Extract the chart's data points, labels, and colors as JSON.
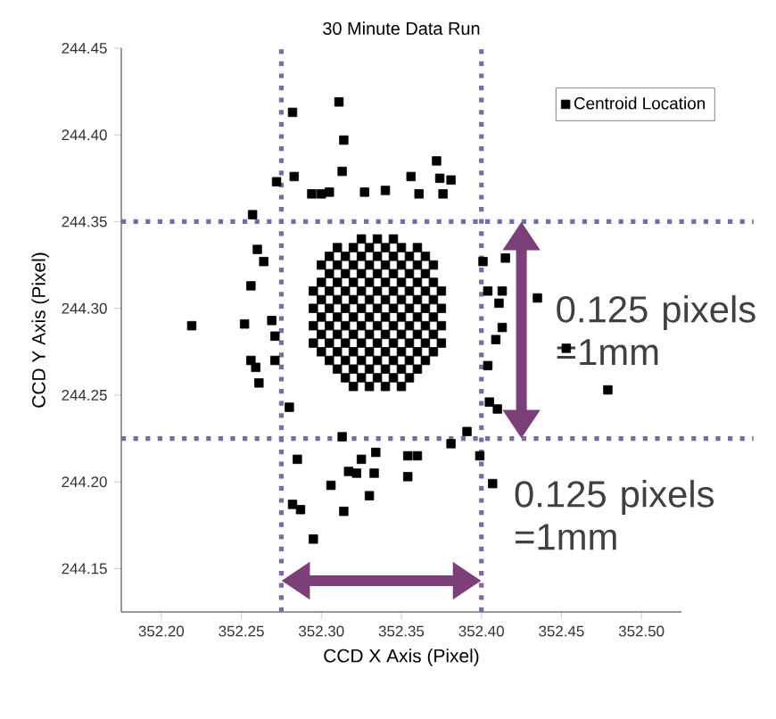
{
  "chart_data": {
    "type": "scatter",
    "title": "30 Minute Data Run",
    "xlabel": "CCD X Axis (Pixel)",
    "ylabel": "CCD Y Axis (Pixel)",
    "xlim": [
      352.175,
      352.525
    ],
    "ylim": [
      244.125,
      244.45
    ],
    "xticks": [
      {
        "value": 352.2,
        "label": "352.20"
      },
      352.25,
      {
        "value": 352.3,
        "label": "352.30"
      },
      352.35,
      {
        "value": 352.4,
        "label": "352.40"
      },
      352.45,
      {
        "value": 352.5,
        "label": "352.50"
      }
    ],
    "yticks": [
      244.15,
      {
        "value": 244.2,
        "label": "244.20"
      },
      244.25,
      {
        "value": 244.3,
        "label": "244.30"
      },
      244.35,
      {
        "value": 244.4,
        "label": "244.40"
      },
      244.45
    ],
    "marker": "square",
    "legend": "top right",
    "grid": false,
    "series": [
      {
        "name": "Centroid Location",
        "color": "#000000",
        "x": [
          352.219,
          352.252,
          352.257,
          352.256,
          352.256,
          352.259,
          352.261,
          352.26,
          352.264,
          352.269,
          352.271,
          352.271,
          352.272,
          352.282,
          352.283,
          352.311,
          352.314,
          352.313,
          352.294,
          352.3,
          352.305,
          352.327,
          352.34,
          352.356,
          352.372,
          352.374,
          352.381,
          352.376,
          352.361,
          352.28,
          352.285,
          352.282,
          352.287,
          352.295,
          352.306,
          352.314,
          352.317,
          352.322,
          352.325,
          352.33,
          352.333,
          352.334,
          352.354,
          352.36,
          352.354,
          352.313,
          352.381,
          352.391,
          352.399,
          352.407,
          352.404,
          352.405,
          352.41,
          352.409,
          352.413,
          352.411,
          352.413,
          352.415,
          352.435,
          352.453,
          352.479,
          352.404,
          352.401,
          352.32,
          352.33,
          352.34,
          352.35,
          352.315,
          352.325,
          352.335,
          352.345,
          352.355,
          352.31,
          352.32,
          352.33,
          352.34,
          352.35,
          352.36,
          352.305,
          352.315,
          352.325,
          352.335,
          352.345,
          352.355,
          352.365,
          352.3,
          352.31,
          352.32,
          352.33,
          352.34,
          352.35,
          352.36,
          352.37,
          352.295,
          352.305,
          352.315,
          352.325,
          352.335,
          352.345,
          352.355,
          352.365,
          352.375,
          352.3,
          352.31,
          352.32,
          352.33,
          352.34,
          352.35,
          352.36,
          352.37,
          352.295,
          352.305,
          352.315,
          352.325,
          352.335,
          352.345,
          352.355,
          352.365,
          352.375,
          352.3,
          352.31,
          352.32,
          352.33,
          352.34,
          352.35,
          352.36,
          352.37,
          352.295,
          352.305,
          352.315,
          352.325,
          352.335,
          352.345,
          352.355,
          352.365,
          352.375,
          352.3,
          352.31,
          352.32,
          352.33,
          352.34,
          352.35,
          352.36,
          352.37,
          352.295,
          352.305,
          352.315,
          352.325,
          352.335,
          352.345,
          352.355,
          352.365,
          352.375,
          352.3,
          352.31,
          352.32,
          352.33,
          352.34,
          352.35,
          352.36,
          352.37,
          352.305,
          352.315,
          352.325,
          352.335,
          352.345,
          352.355,
          352.365,
          352.3,
          352.31,
          352.32,
          352.33,
          352.34,
          352.35,
          352.36,
          352.37,
          352.305,
          352.315,
          352.325,
          352.335,
          352.345,
          352.355,
          352.365,
          352.31,
          352.32,
          352.33,
          352.34,
          352.35,
          352.36,
          352.325,
          352.335,
          352.345
        ],
        "values": [
          244.29,
          244.291,
          244.354,
          244.313,
          244.27,
          244.266,
          244.257,
          244.334,
          244.327,
          244.293,
          244.284,
          244.27,
          244.373,
          244.413,
          244.376,
          244.419,
          244.397,
          244.379,
          244.366,
          244.366,
          244.367,
          244.367,
          244.368,
          244.376,
          244.385,
          244.375,
          244.374,
          244.366,
          244.366,
          244.243,
          244.213,
          244.187,
          244.184,
          244.167,
          244.198,
          244.183,
          244.206,
          244.205,
          244.213,
          244.192,
          244.205,
          244.217,
          244.215,
          244.215,
          244.203,
          244.226,
          244.222,
          244.229,
          244.215,
          244.199,
          244.267,
          244.246,
          244.242,
          244.282,
          244.289,
          244.303,
          244.31,
          244.329,
          244.306,
          244.277,
          244.253,
          244.31,
          244.327,
          244.255,
          244.255,
          244.255,
          244.255,
          244.26,
          244.26,
          244.26,
          244.26,
          244.26,
          244.265,
          244.265,
          244.265,
          244.265,
          244.265,
          244.265,
          244.27,
          244.27,
          244.27,
          244.27,
          244.27,
          244.27,
          244.27,
          244.275,
          244.275,
          244.275,
          244.275,
          244.275,
          244.275,
          244.275,
          244.275,
          244.28,
          244.28,
          244.28,
          244.28,
          244.28,
          244.28,
          244.28,
          244.28,
          244.28,
          244.285,
          244.285,
          244.285,
          244.285,
          244.285,
          244.285,
          244.285,
          244.285,
          244.29,
          244.29,
          244.29,
          244.29,
          244.29,
          244.29,
          244.29,
          244.29,
          244.29,
          244.295,
          244.295,
          244.295,
          244.295,
          244.295,
          244.295,
          244.295,
          244.295,
          244.3,
          244.3,
          244.3,
          244.3,
          244.3,
          244.3,
          244.3,
          244.3,
          244.3,
          244.305,
          244.305,
          244.305,
          244.305,
          244.305,
          244.305,
          244.305,
          244.305,
          244.31,
          244.31,
          244.31,
          244.31,
          244.31,
          244.31,
          244.31,
          244.31,
          244.31,
          244.315,
          244.315,
          244.315,
          244.315,
          244.315,
          244.315,
          244.315,
          244.315,
          244.32,
          244.32,
          244.32,
          244.32,
          244.32,
          244.32,
          244.32,
          244.325,
          244.325,
          244.325,
          244.325,
          244.325,
          244.325,
          244.325,
          244.325,
          244.33,
          244.33,
          244.33,
          244.33,
          244.33,
          244.33,
          244.33,
          244.335,
          244.335,
          244.335,
          244.335,
          244.335,
          244.335,
          244.34,
          244.34,
          244.34
        ]
      }
    ],
    "ref_lines": [
      {
        "axis": "x",
        "value": 352.275,
        "color": "#7b6aa8",
        "line_style": "dotted"
      },
      {
        "axis": "x",
        "value": 352.4,
        "color": "#7b6aa8",
        "line_style": "dotted"
      },
      {
        "axis": "y",
        "value": 244.35,
        "color": "#7b6aa8",
        "line_style": "dotted"
      },
      {
        "axis": "y",
        "value": 244.225,
        "color": "#7b6aa8",
        "line_style": "dotted"
      }
    ],
    "annotations": [
      "0.125 pixels =1mm",
      "0.125 pixels =1mm"
    ]
  }
}
